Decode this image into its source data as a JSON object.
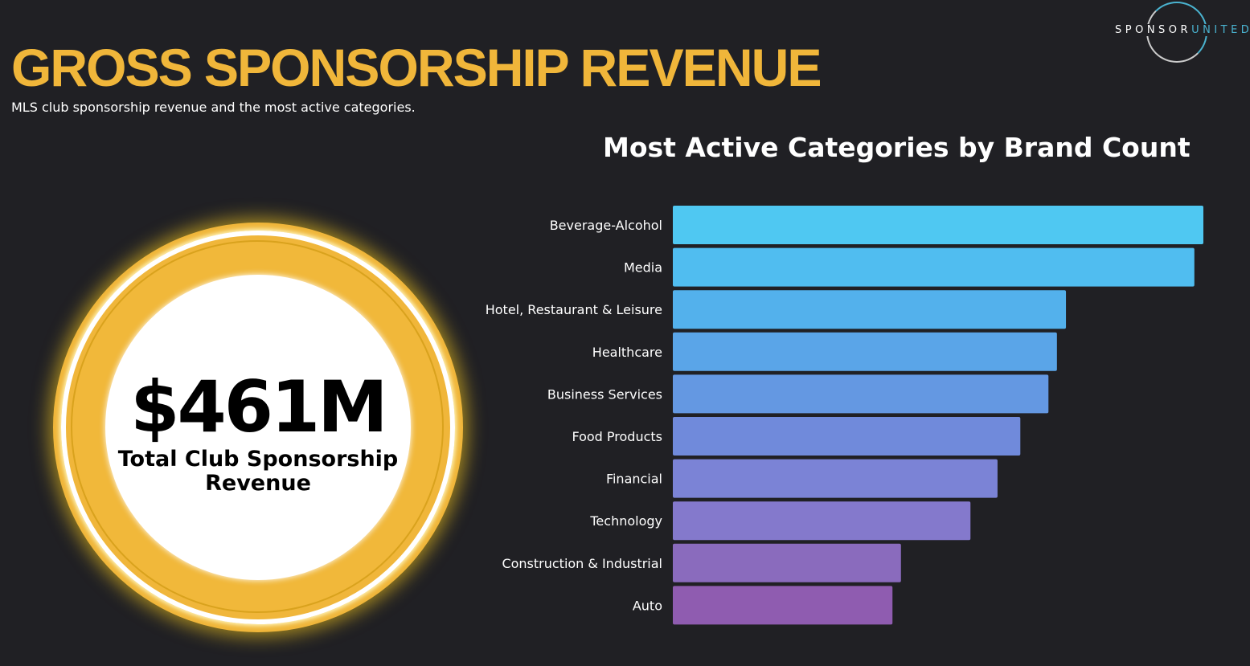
{
  "header": {
    "title": "GROSS SPONSORSHIP REVENUE",
    "subtitle": "MLS club sponsorship revenue and the most active categories."
  },
  "logo": {
    "part1": "SPONSOR",
    "part2": "UNITED"
  },
  "kpi": {
    "value": "$461M",
    "label_line1": "Total Club Sponsorship",
    "label_line2": "Revenue",
    "color": "#f0b63a"
  },
  "chart_data": {
    "type": "bar",
    "orientation": "horizontal",
    "title": "Most Active Categories by Brand Count",
    "categories": [
      "Beverage-Alcohol",
      "Media",
      "Hotel, Restaurant & Leisure",
      "Healthcare",
      "Business Services",
      "Food Products",
      "Financial",
      "Technology",
      "Construction & Industrial",
      "Auto"
    ],
    "values": [
      100,
      98.3,
      74.1,
      72.4,
      70.8,
      65.5,
      61.2,
      56.1,
      43.0,
      41.4
    ],
    "value_units": "relative brand count (% of max, no axis shown)",
    "colors": [
      "#4fc8f2",
      "#50bdf0",
      "#53b1ec",
      "#5aa5e8",
      "#6498e2",
      "#708adb",
      "#7b83d6",
      "#8479cc",
      "#8a6bbd",
      "#8f5cb0"
    ],
    "xlabel": "",
    "ylabel": "",
    "grid": false
  }
}
